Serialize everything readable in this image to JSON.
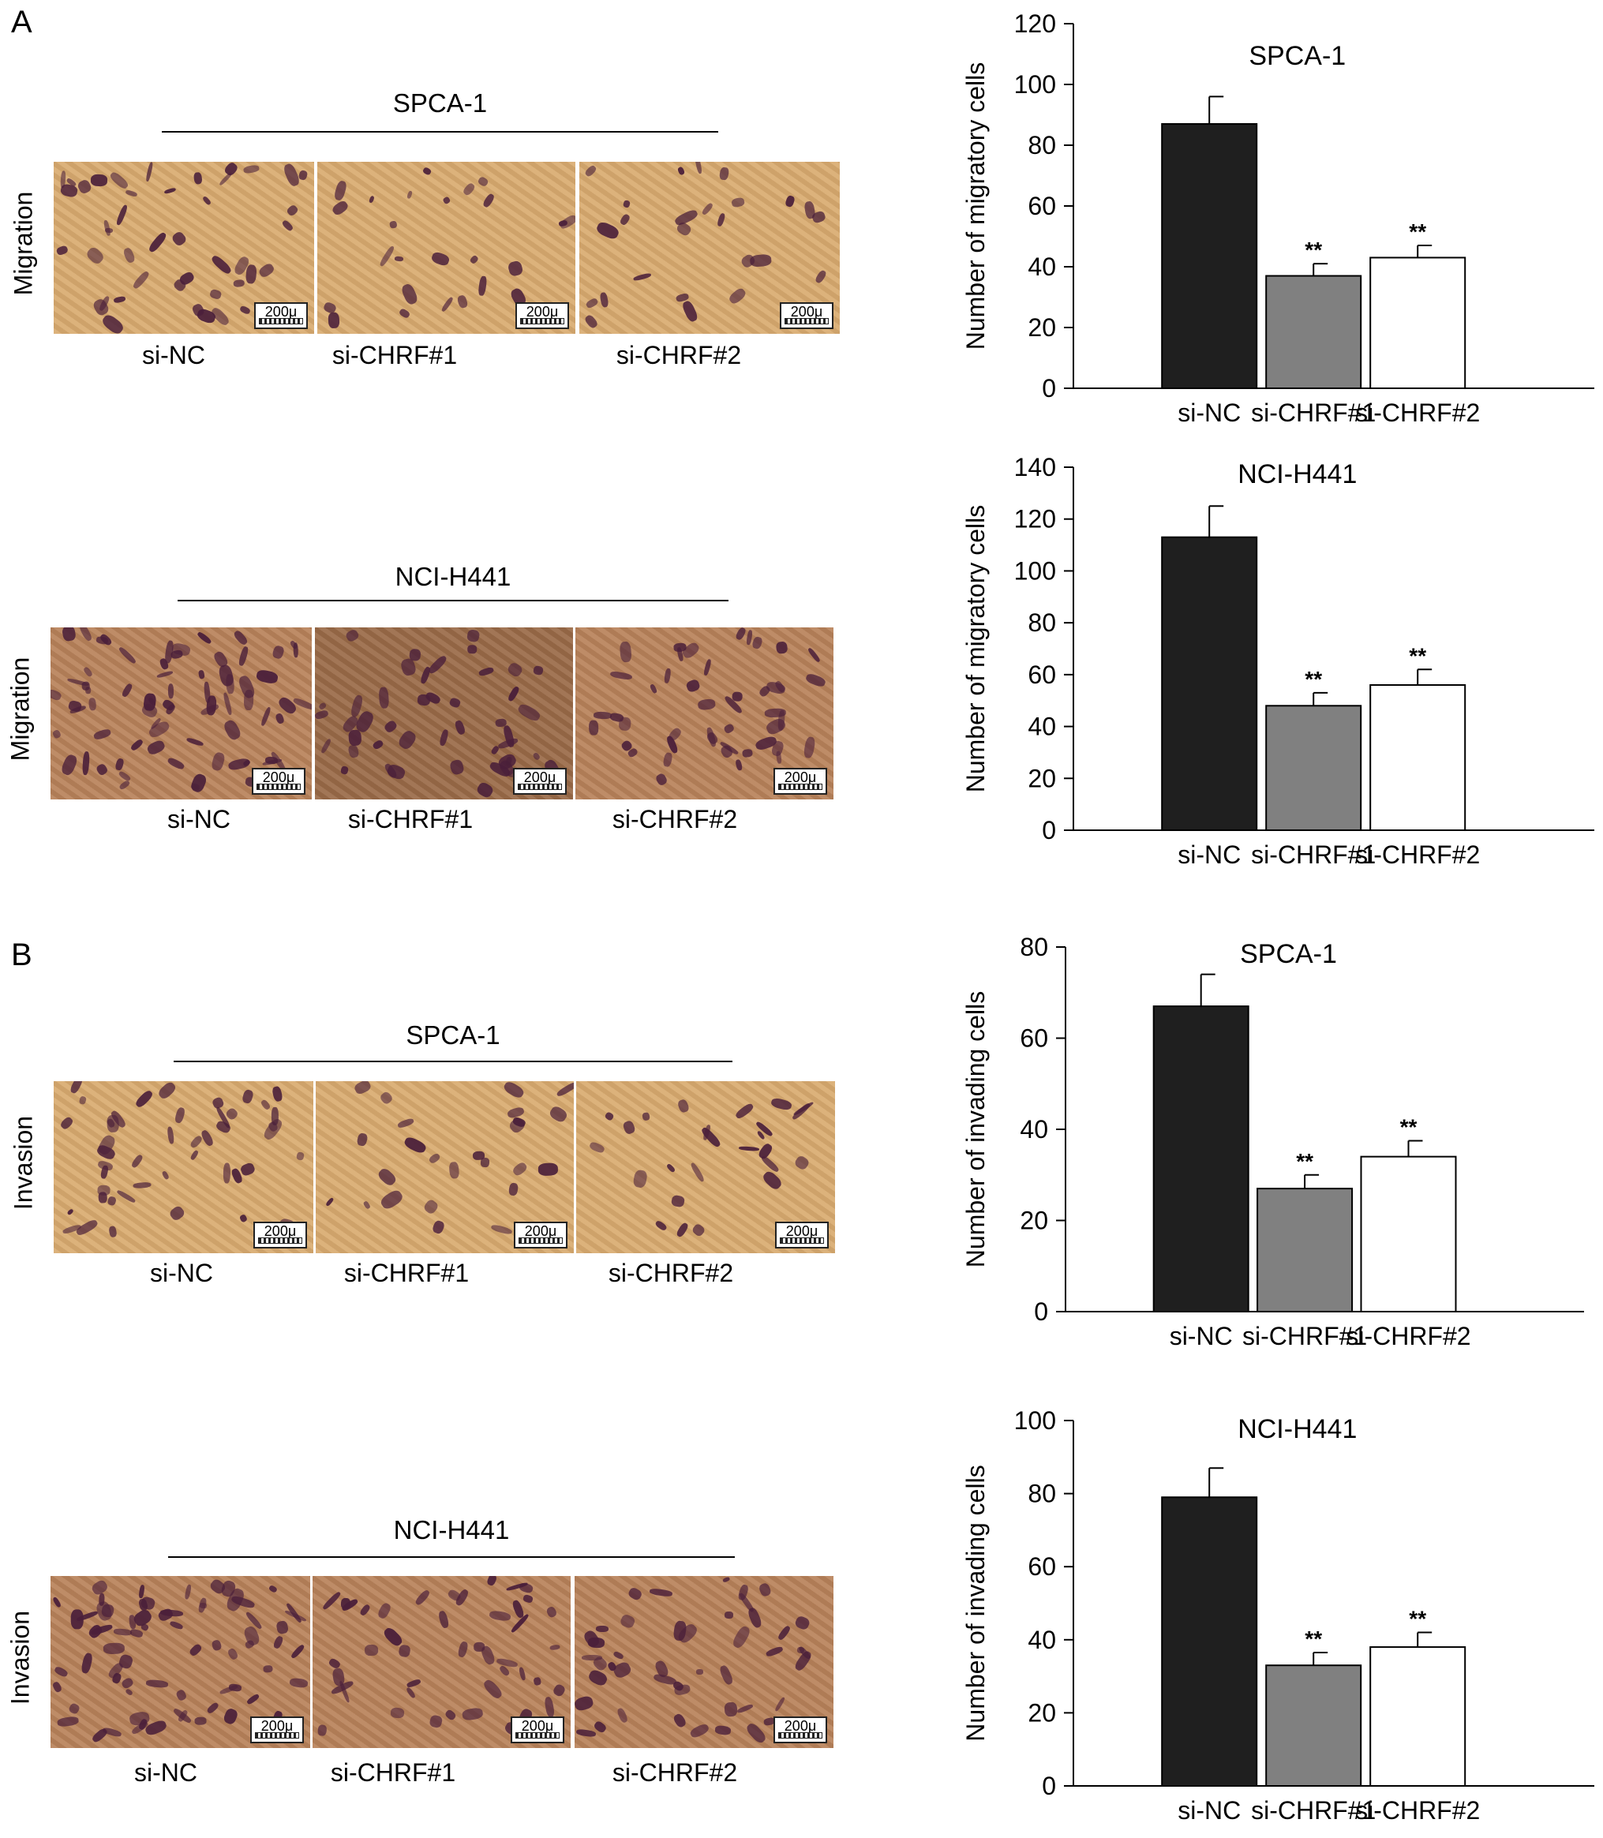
{
  "panel_letters": [
    "A",
    "B"
  ],
  "micrographs": [
    {
      "cell_line": "SPCA-1",
      "assay": "Migration",
      "images": [
        {
          "label": "si-NC",
          "scale": "200μ"
        },
        {
          "label": "si-CHRF#1",
          "scale": "200μ"
        },
        {
          "label": "si-CHRF#2",
          "scale": "200μ"
        }
      ]
    },
    {
      "cell_line": "NCI-H441",
      "assay": "Migration",
      "images": [
        {
          "label": "si-NC",
          "scale": "200μ"
        },
        {
          "label": "si-CHRF#1",
          "scale": "200μ"
        },
        {
          "label": "si-CHRF#2",
          "scale": "200μ"
        }
      ]
    },
    {
      "cell_line": "SPCA-1",
      "assay": "Invasion",
      "images": [
        {
          "label": "si-NC",
          "scale": "200μ"
        },
        {
          "label": "si-CHRF#1",
          "scale": "200μ"
        },
        {
          "label": "si-CHRF#2",
          "scale": "200μ"
        }
      ]
    },
    {
      "cell_line": "NCI-H441",
      "assay": "Invasion",
      "images": [
        {
          "label": "si-NC",
          "scale": "200μ"
        },
        {
          "label": "si-CHRF#1",
          "scale": "200μ"
        },
        {
          "label": "si-CHRF#2",
          "scale": "200μ"
        }
      ]
    }
  ],
  "colors": {
    "si-NC": "#1f1f1f",
    "si-CHRF#1": "#808080",
    "si-CHRF#2": "#ffffff",
    "micro_bg_light": "#d9ab70",
    "micro_bg_dark": "#b8825a",
    "cell_stain": "#4a1f3a"
  },
  "chart_data": [
    {
      "type": "bar",
      "title": "SPCA-1",
      "ylabel": "Number of migratory cells",
      "categories": [
        "si-NC",
        "si-CHRF#1",
        "si-CHRF#2"
      ],
      "values": [
        87,
        37,
        43
      ],
      "errors": [
        9,
        4,
        4
      ],
      "annotations": [
        "",
        "**",
        "**"
      ],
      "ylim": [
        0,
        120
      ],
      "yticks": [
        0,
        20,
        40,
        60,
        80,
        100,
        120
      ],
      "ytick_labels": [
        "0",
        "20",
        "40",
        "60",
        "80",
        "100",
        "120"
      ]
    },
    {
      "type": "bar",
      "title": "NCI-H441",
      "ylabel": "Number of migratory cells",
      "categories": [
        "si-NC",
        "si-CHRF#1",
        "si-CHRF#2"
      ],
      "values": [
        113,
        48,
        56
      ],
      "errors": [
        12,
        5,
        6
      ],
      "annotations": [
        "",
        "**",
        "**"
      ],
      "ylim": [
        0,
        140
      ],
      "yticks": [
        0,
        20,
        40,
        60,
        80,
        100,
        120,
        140
      ],
      "ytick_labels": [
        "0",
        "20",
        "40",
        "60",
        "80",
        "100",
        "120",
        "140"
      ]
    },
    {
      "type": "bar",
      "title": "SPCA-1",
      "ylabel": "Number of invading cells",
      "categories": [
        "si-NC",
        "si-CHRF#1",
        "si-CHRF#2"
      ],
      "values": [
        67,
        27,
        34
      ],
      "errors": [
        7,
        3,
        3.5
      ],
      "annotations": [
        "",
        "**",
        "**"
      ],
      "ylim": [
        0,
        80
      ],
      "yticks": [
        0,
        20,
        40,
        60,
        80
      ],
      "ytick_labels": [
        "0",
        "20",
        "40",
        "60",
        "80"
      ]
    },
    {
      "type": "bar",
      "title": "NCI-H441",
      "ylabel": "Number of invading cells",
      "categories": [
        "si-NC",
        "si-CHRF#1",
        "si-CHRF#2"
      ],
      "values": [
        79,
        33,
        38
      ],
      "errors": [
        8,
        3.5,
        4
      ],
      "annotations": [
        "",
        "**",
        "**"
      ],
      "ylim": [
        0,
        100
      ],
      "yticks": [
        0,
        20,
        40,
        60,
        80,
        100
      ],
      "ytick_labels": [
        "0",
        "20",
        "40",
        "60",
        "80",
        "100"
      ]
    }
  ]
}
